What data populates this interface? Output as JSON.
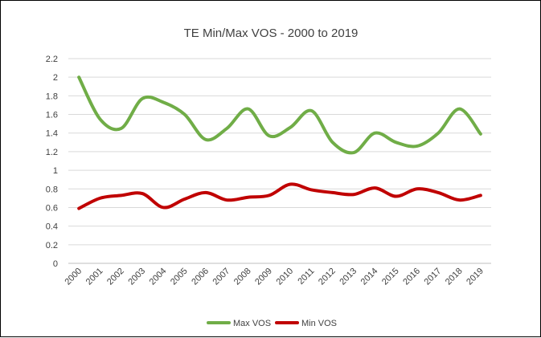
{
  "chart_data": {
    "type": "line",
    "title": "TE Min/Max VOS - 2000 to 2019",
    "xlabel": "",
    "ylabel": "",
    "categories": [
      "2000",
      "2001",
      "2002",
      "2003",
      "2004",
      "2005",
      "2006",
      "2007",
      "2008",
      "2009",
      "2010",
      "2011",
      "2012",
      "2013",
      "2014",
      "2015",
      "2016",
      "2017",
      "2018",
      "2019"
    ],
    "ylim": [
      0,
      2.2
    ],
    "yticks": [
      "0",
      "0.2",
      "0.4",
      "0.6",
      "0.8",
      "1",
      "1.2",
      "1.4",
      "1.6",
      "1.8",
      "2",
      "2.2"
    ],
    "grid": true,
    "legend_position": "bottom",
    "series": [
      {
        "name": "Max VOS",
        "color": "#70ad47",
        "values": [
          2.0,
          1.55,
          1.45,
          1.77,
          1.73,
          1.6,
          1.33,
          1.45,
          1.66,
          1.37,
          1.46,
          1.64,
          1.3,
          1.19,
          1.4,
          1.3,
          1.26,
          1.4,
          1.66,
          1.39
        ]
      },
      {
        "name": "Min VOS",
        "color": "#c00000",
        "values": [
          0.59,
          0.7,
          0.73,
          0.75,
          0.6,
          0.69,
          0.76,
          0.68,
          0.71,
          0.73,
          0.85,
          0.79,
          0.76,
          0.74,
          0.81,
          0.72,
          0.8,
          0.76,
          0.68,
          0.73
        ]
      }
    ]
  }
}
